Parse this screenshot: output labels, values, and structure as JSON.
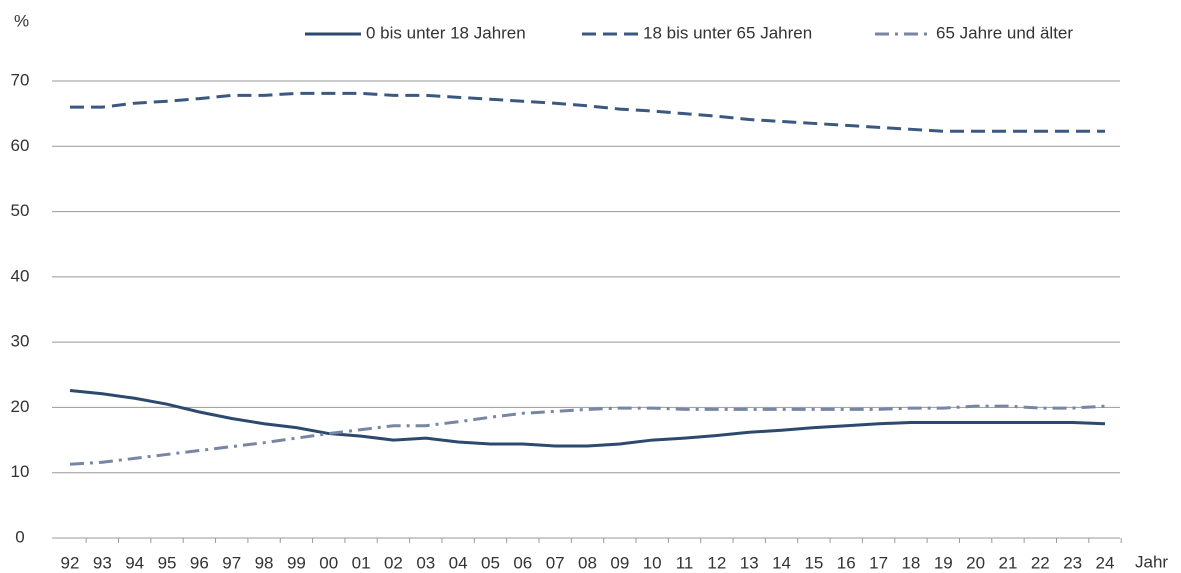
{
  "chart_data": {
    "type": "line",
    "y_label": "%",
    "x_label": "Jahr",
    "categories": [
      "92",
      "93",
      "94",
      "95",
      "96",
      "97",
      "98",
      "99",
      "00",
      "01",
      "02",
      "03",
      "04",
      "05",
      "06",
      "07",
      "08",
      "09",
      "10",
      "11",
      "12",
      "13",
      "14",
      "15",
      "16",
      "17",
      "18",
      "19",
      "20",
      "21",
      "22",
      "23",
      "24"
    ],
    "series": [
      {
        "name": "0 bis unter 18 Jahren",
        "color": "#2c4a6e",
        "dash": "solid",
        "values": [
          22.6,
          22.1,
          21.4,
          20.5,
          19.3,
          18.3,
          17.5,
          16.9,
          16.0,
          15.6,
          15.0,
          15.3,
          14.7,
          14.4,
          14.4,
          14.1,
          14.1,
          14.4,
          15.0,
          15.3,
          15.7,
          16.2,
          16.5,
          16.9,
          17.2,
          17.5,
          17.7,
          17.7,
          17.7,
          17.7,
          17.7,
          17.7,
          17.5
        ]
      },
      {
        "name": "18 bis unter 65 Jahren",
        "color": "#3b5880",
        "dash": "dashed",
        "values": [
          66.0,
          66.0,
          66.6,
          66.9,
          67.3,
          67.8,
          67.8,
          68.1,
          68.1,
          68.1,
          67.8,
          67.8,
          67.5,
          67.2,
          66.9,
          66.6,
          66.2,
          65.7,
          65.4,
          65.0,
          64.6,
          64.1,
          63.8,
          63.5,
          63.2,
          62.9,
          62.6,
          62.3,
          62.3,
          62.3,
          62.3,
          62.3,
          62.3
        ]
      },
      {
        "name": "65 Jahre und älter",
        "color": "#7886a6",
        "dash": "dashdot",
        "values": [
          11.3,
          11.6,
          12.2,
          12.8,
          13.4,
          14.0,
          14.6,
          15.3,
          16.0,
          16.6,
          17.2,
          17.2,
          17.8,
          18.5,
          19.1,
          19.4,
          19.7,
          19.9,
          19.9,
          19.7,
          19.7,
          19.7,
          19.7,
          19.7,
          19.7,
          19.7,
          19.9,
          19.9,
          20.2,
          20.2,
          19.9,
          19.9,
          20.2
        ]
      }
    ],
    "ylim": [
      0,
      70
    ],
    "yticks": [
      0,
      10,
      20,
      30,
      40,
      50,
      60,
      70
    ],
    "grid": true,
    "legend": "top-right"
  }
}
